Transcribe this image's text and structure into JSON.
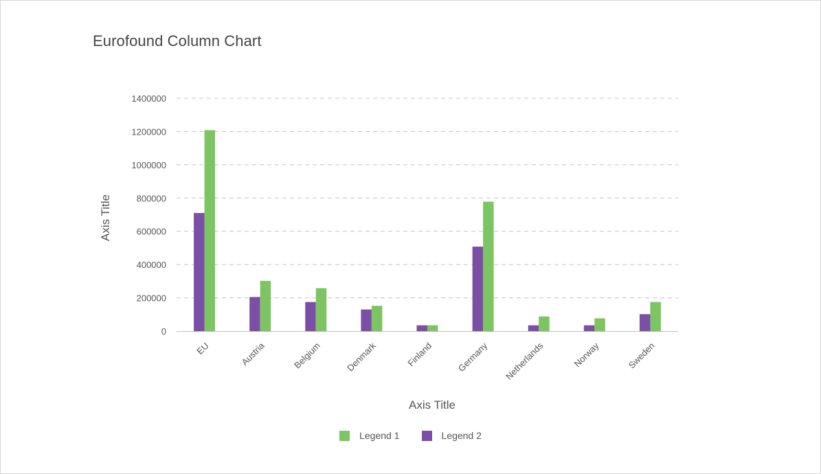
{
  "chart_data": {
    "type": "bar",
    "title": "Eurofound Column Chart",
    "xlabel": "Axis Title",
    "ylabel": "Axis Title",
    "categories": [
      "EU",
      "Austria",
      "Belgium",
      "Denmark",
      "Finland",
      "Germany",
      "Netherlands",
      "Norway",
      "Sweden"
    ],
    "series": [
      {
        "name": "Legend 2",
        "color": "#7b4fa6",
        "values": [
          710000,
          205000,
          175000,
          130000,
          35000,
          508000,
          35000,
          35000,
          102000
        ]
      },
      {
        "name": "Legend 1",
        "color": "#7dc462",
        "values": [
          1208000,
          302000,
          258000,
          152000,
          35000,
          778000,
          88000,
          77000,
          175000
        ]
      }
    ],
    "legend_order": [
      "Legend 1",
      "Legend 2"
    ],
    "yticks": [
      "0",
      "200000",
      "400000",
      "600000",
      "800000",
      "1000000",
      "1200000",
      "1400000"
    ],
    "ylim": [
      0,
      1400000
    ],
    "grid": true,
    "legend_position": "bottom"
  }
}
